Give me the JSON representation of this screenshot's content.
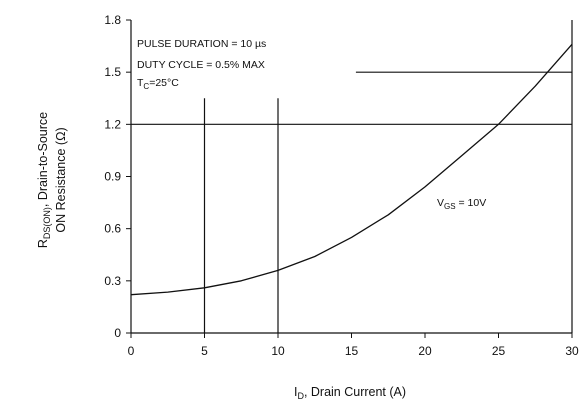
{
  "chart_data": {
    "type": "line",
    "title": "",
    "xlabel": "I<sub>D</sub>, Drain Current (A)",
    "xlabel_parts": {
      "main": "I",
      "sub": "D",
      "rest": ", Drain Current (A)"
    },
    "ylabel_parts": {
      "line1_main": "R",
      "line1_sub": "DS(ON)",
      "line1_rest": ", Drain-to-Source",
      "line2": "ON Resistance (Ω)"
    },
    "xlim": [
      0,
      30
    ],
    "ylim": [
      0,
      1.8
    ],
    "x_ticks": [
      0,
      5,
      10,
      15,
      20,
      25,
      30
    ],
    "y_ticks": [
      0,
      0.3,
      0.6,
      0.9,
      1.2,
      1.5,
      1.8
    ],
    "x_tick_labels": [
      "0",
      "5",
      "10",
      "15",
      "20",
      "25",
      "30"
    ],
    "y_tick_labels": [
      "0",
      "0.3",
      "0.6",
      "0.9",
      "1.2",
      "1.5",
      "1.8"
    ],
    "grid": false,
    "series": [
      {
        "label_parts": {
          "main": "V",
          "sub": "GS",
          "rest": " = 10V"
        },
        "x": [
          0,
          2.5,
          5,
          7.5,
          10,
          12.5,
          15,
          17.5,
          20,
          22.5,
          25,
          27.5,
          30
        ],
        "values": [
          0.22,
          0.235,
          0.26,
          0.3,
          0.36,
          0.44,
          0.55,
          0.68,
          0.84,
          1.02,
          1.2,
          1.42,
          1.66
        ]
      }
    ],
    "annotations": [
      "PULSE DURATION = 10 µs",
      "DUTY CYCLE = 0.5% MAX",
      "T<sub>C</sub>=25°C"
    ],
    "annotation_parts": {
      "line1": "PULSE DURATION = 10 µs",
      "line2": "DUTY CYCLE = 0.5% MAX",
      "line3_main": "T",
      "line3_sub": "C",
      "line3_rest": "=25°C"
    },
    "reference_lines": {
      "horizontal": [
        {
          "y": 1.2,
          "x_from": 0,
          "x_to": 30
        },
        {
          "y": 1.5,
          "x_from": 15.3,
          "x_to": 30
        }
      ],
      "vertical": [
        {
          "x": 5,
          "y_from": 0,
          "y_to": 1.35
        },
        {
          "x": 10,
          "y_from": 0,
          "y_to": 1.35
        }
      ]
    },
    "colors": {
      "line": "#111111",
      "axis": "#111111",
      "text": "#111111"
    }
  }
}
